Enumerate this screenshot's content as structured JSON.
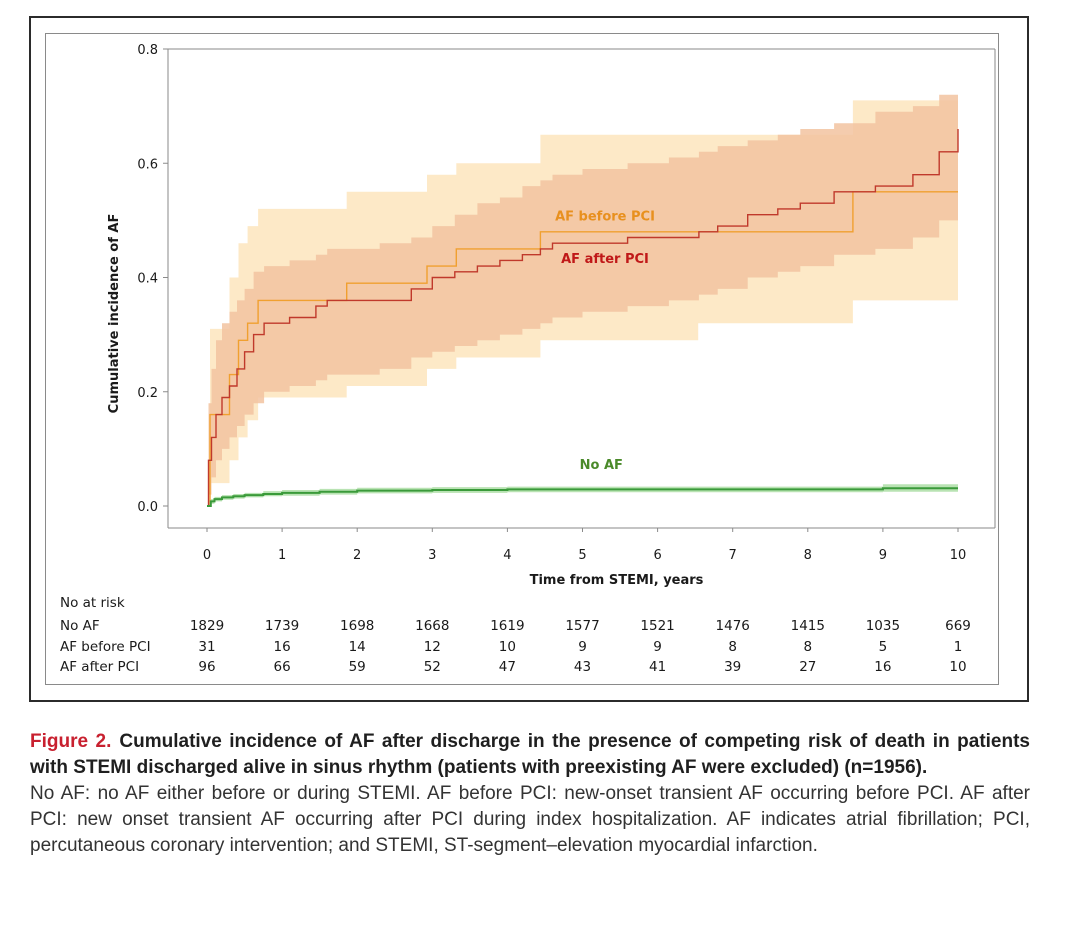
{
  "figure": {
    "number_label": "Figure 2.",
    "title": "Cumulative incidence of AF after discharge in the presence of competing risk of death in patients with STEMI discharged alive in sinus rhythm (patients with preexisting AF were excluded) (n=1956).",
    "description": "No AF: no AF either before or during STEMI. AF before PCI: new-onset transient AF occurring before PCI. AF after PCI: new onset transient AF occurring after PCI during index hospitalization. AF indicates atrial fibrillation; PCI, percutaneous coronary intervention; and STEMI, ST-segment–elevation myocardial infarction."
  },
  "colors": {
    "af_before": "#f0a030",
    "af_before_band": "#fde8c4",
    "af_after": "#c0392b",
    "af_after_band": "#f2c3a0",
    "no_af": "#3a9a3a",
    "no_af_band": "#a8dca0",
    "label_af_before": "#e8901e",
    "label_af_after": "#c01818",
    "label_no_af": "#4a8a2a",
    "fig_num": "#c8202f"
  },
  "chart_data": {
    "type": "line",
    "title": "",
    "xlabel": "Time from STEMI, years",
    "ylabel": "Cumulative incidence of AF",
    "xlim": [
      0,
      10
    ],
    "ylim": [
      0,
      0.8
    ],
    "x_ticks": [
      "0",
      "1",
      "2",
      "3",
      "4",
      "5",
      "6",
      "7",
      "8",
      "9",
      "10"
    ],
    "y_ticks": [
      "0.0",
      "0.2",
      "0.4",
      "0.6",
      "0.8"
    ],
    "grid": false,
    "step": true,
    "series": [
      {
        "name": "AF before PCI",
        "label": "AF before PCI",
        "color_key": "af_before",
        "x": [
          0,
          0.04,
          0.3,
          0.42,
          0.54,
          0.68,
          1.86,
          2.93,
          3.32,
          4.44,
          6.54,
          8.6,
          10
        ],
        "y": [
          0,
          0.16,
          0.23,
          0.29,
          0.32,
          0.36,
          0.39,
          0.42,
          0.45,
          0.48,
          0.48,
          0.55,
          0.55
        ],
        "ci_lower": [
          0,
          0.04,
          0.08,
          0.12,
          0.15,
          0.19,
          0.21,
          0.24,
          0.26,
          0.29,
          0.32,
          0.36,
          0.36
        ],
        "ci_upper": [
          0,
          0.31,
          0.4,
          0.46,
          0.49,
          0.52,
          0.55,
          0.58,
          0.6,
          0.65,
          0.65,
          0.71,
          0.71
        ]
      },
      {
        "name": "AF after PCI",
        "label": "AF after PCI",
        "color_key": "af_after",
        "x": [
          0,
          0.02,
          0.06,
          0.12,
          0.2,
          0.3,
          0.4,
          0.5,
          0.62,
          0.76,
          1.1,
          1.45,
          1.6,
          2.3,
          2.72,
          3.0,
          3.3,
          3.6,
          3.9,
          4.2,
          4.44,
          4.6,
          5.0,
          5.6,
          6.15,
          6.55,
          6.8,
          7.2,
          7.6,
          7.9,
          8.35,
          8.9,
          9.4,
          9.75,
          10
        ],
        "y": [
          0,
          0.08,
          0.12,
          0.16,
          0.19,
          0.21,
          0.24,
          0.27,
          0.3,
          0.32,
          0.33,
          0.35,
          0.36,
          0.36,
          0.38,
          0.4,
          0.41,
          0.42,
          0.43,
          0.44,
          0.45,
          0.46,
          0.46,
          0.47,
          0.47,
          0.48,
          0.49,
          0.51,
          0.52,
          0.53,
          0.55,
          0.56,
          0.58,
          0.62,
          0.66
        ],
        "ci_lower": [
          0,
          0.02,
          0.05,
          0.08,
          0.1,
          0.12,
          0.14,
          0.16,
          0.18,
          0.2,
          0.21,
          0.22,
          0.23,
          0.24,
          0.26,
          0.27,
          0.28,
          0.29,
          0.3,
          0.31,
          0.32,
          0.33,
          0.34,
          0.35,
          0.36,
          0.37,
          0.38,
          0.4,
          0.41,
          0.42,
          0.44,
          0.45,
          0.47,
          0.5,
          0.5
        ],
        "ci_upper": [
          0,
          0.18,
          0.24,
          0.29,
          0.32,
          0.34,
          0.36,
          0.38,
          0.41,
          0.42,
          0.43,
          0.44,
          0.45,
          0.46,
          0.47,
          0.49,
          0.51,
          0.53,
          0.54,
          0.56,
          0.57,
          0.58,
          0.59,
          0.6,
          0.61,
          0.62,
          0.63,
          0.64,
          0.65,
          0.66,
          0.67,
          0.69,
          0.7,
          0.72,
          0.72
        ]
      },
      {
        "name": "No AF",
        "label": "No AF",
        "color_key": "no_af",
        "x": [
          0,
          0.05,
          0.1,
          0.2,
          0.35,
          0.5,
          0.75,
          1.0,
          1.5,
          2.0,
          3.0,
          4.0,
          5.0,
          6.0,
          7.0,
          8.0,
          9.0,
          10
        ],
        "y": [
          0,
          0.008,
          0.012,
          0.015,
          0.017,
          0.019,
          0.021,
          0.023,
          0.025,
          0.027,
          0.028,
          0.029,
          0.029,
          0.029,
          0.029,
          0.029,
          0.031,
          0.031
        ],
        "ci_lower": [
          0,
          0.004,
          0.008,
          0.011,
          0.013,
          0.015,
          0.017,
          0.018,
          0.02,
          0.022,
          0.023,
          0.024,
          0.024,
          0.024,
          0.024,
          0.024,
          0.025,
          0.025
        ],
        "ci_upper": [
          0,
          0.012,
          0.016,
          0.019,
          0.021,
          0.023,
          0.026,
          0.028,
          0.03,
          0.032,
          0.033,
          0.034,
          0.034,
          0.034,
          0.034,
          0.034,
          0.038,
          0.038
        ]
      }
    ],
    "annotations": [
      {
        "text": "AF before PCI",
        "x": 5.3,
        "y": 0.5,
        "color_key": "label_af_before"
      },
      {
        "text": "AF after PCI",
        "x": 5.3,
        "y": 0.425,
        "color_key": "label_af_after"
      },
      {
        "text": "No AF",
        "x": 5.25,
        "y": 0.065,
        "color_key": "label_no_af"
      }
    ],
    "risk_table": {
      "header": "No at risk",
      "timepoints": [
        0,
        1,
        2,
        3,
        4,
        5,
        6,
        7,
        8,
        9,
        10
      ],
      "rows": [
        {
          "label": "No AF",
          "values": [
            "1829",
            "1739",
            "1698",
            "1668",
            "1619",
            "1577",
            "1521",
            "1476",
            "1415",
            "1035",
            "669"
          ]
        },
        {
          "label": "AF before PCI",
          "values": [
            "31",
            "16",
            "14",
            "12",
            "10",
            "9",
            "9",
            "8",
            "8",
            "5",
            "1"
          ]
        },
        {
          "label": "AF after PCI",
          "values": [
            "96",
            "66",
            "59",
            "52",
            "47",
            "43",
            "41",
            "39",
            "27",
            "16",
            "10"
          ]
        }
      ]
    }
  }
}
